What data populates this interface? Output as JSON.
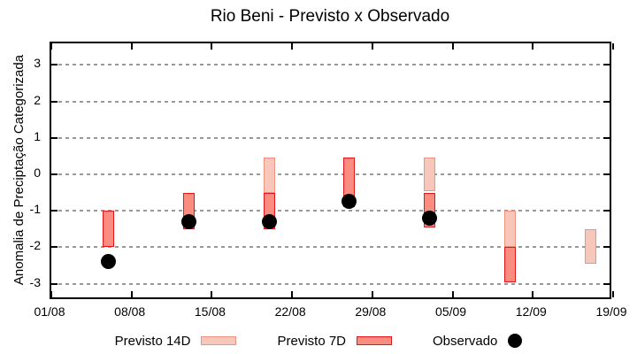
{
  "chart_data": {
    "type": "range-bar+scatter",
    "title": "Rio Beni - Previsto x Observado",
    "ylabel": "Anomalia de Preciptação Categorizada",
    "grid": true,
    "legend_position": "bottom",
    "ylim": [
      -3.5,
      3.6
    ],
    "yticks": [
      3,
      2,
      1,
      0,
      -1,
      -2,
      -3
    ],
    "x_ticks": [
      {
        "day": 0,
        "label": "01/08"
      },
      {
        "day": 7,
        "label": "08/08"
      },
      {
        "day": 14,
        "label": "15/08"
      },
      {
        "day": 21,
        "label": "22/08"
      },
      {
        "day": 28,
        "label": "29/08"
      },
      {
        "day": 35,
        "label": "05/09"
      },
      {
        "day": 42,
        "label": "12/09"
      },
      {
        "day": 49,
        "label": "19/09"
      }
    ],
    "series": [
      {
        "name": "Previsto 14D",
        "type": "range-bar",
        "fill": "#F8C7BB",
        "border": "#F0917F",
        "bars": [
          {
            "date": "20/08",
            "day": 19,
            "from": 0.45,
            "to": -0.5
          },
          {
            "date": "03/09",
            "day": 33,
            "from": 0.45,
            "to": -0.45
          },
          {
            "date": "10/09",
            "day": 40,
            "from": -1.0,
            "to": -2.0
          },
          {
            "date": "17/09",
            "day": 47,
            "from": -1.5,
            "to": -2.45
          }
        ]
      },
      {
        "name": "Previsto 7D",
        "type": "range-bar",
        "fill": "#FA8C80",
        "border": "#E3161C",
        "bars": [
          {
            "date": "06/08",
            "day": 5,
            "from": -1.0,
            "to": -2.0
          },
          {
            "date": "13/08",
            "day": 12,
            "from": -0.5,
            "to": -1.5
          },
          {
            "date": "20/08",
            "day": 19,
            "from": -0.5,
            "to": -1.5
          },
          {
            "date": "27/08",
            "day": 26,
            "from": 0.45,
            "to": -0.9
          },
          {
            "date": "03/09",
            "day": 33,
            "from": -0.5,
            "to": -1.45
          },
          {
            "date": "10/09",
            "day": 40,
            "from": -2.0,
            "to": -2.95
          }
        ]
      },
      {
        "name": "Observado",
        "type": "scatter",
        "color": "#000000",
        "points": [
          {
            "date": "06/08",
            "day": 5,
            "value": -2.4
          },
          {
            "date": "13/08",
            "day": 12,
            "value": -1.3
          },
          {
            "date": "20/08",
            "day": 19,
            "value": -1.3
          },
          {
            "date": "27/08",
            "day": 26,
            "value": -0.75
          },
          {
            "date": "03/09",
            "day": 33,
            "value": -1.2
          }
        ]
      }
    ]
  }
}
